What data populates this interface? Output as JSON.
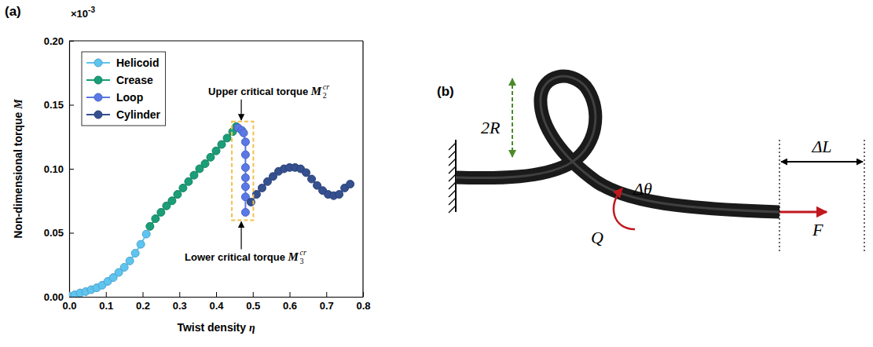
{
  "chart_data": {
    "type": "line",
    "panel_label": "(a)",
    "xlabel": "Twist density η",
    "ylabel": "Non-dimensional torque M",
    "y_multiplier": {
      "text": "×10",
      "exponent": "-3"
    },
    "xlim": [
      0,
      0.8
    ],
    "ylim": [
      0,
      0.2
    ],
    "xticks": [
      {
        "value": 0,
        "label": "0.0"
      },
      0.1,
      0.2,
      0.3,
      0.4,
      0.5,
      0.6,
      0.7,
      0.8
    ],
    "yticks": [
      {
        "value": 0,
        "label": "0.00"
      },
      0.05,
      {
        "value": 0.1,
        "label": "0.10"
      },
      0.15,
      {
        "value": 0.2,
        "label": "0.20"
      }
    ],
    "legend": "upper left",
    "marker": "circle",
    "line_style": "solid",
    "series": [
      {
        "name": "Helicoid",
        "color": "#5ec4f0",
        "x": [
          0,
          0.015,
          0.03,
          0.045,
          0.06,
          0.075,
          0.09,
          0.105,
          0.12,
          0.135,
          0.15,
          0.165,
          0.18,
          0.195,
          0.21
        ],
        "values": [
          0.0005,
          0.0015,
          0.003,
          0.004,
          0.0055,
          0.007,
          0.009,
          0.012,
          0.015,
          0.019,
          0.023,
          0.028,
          0.034,
          0.041,
          0.049
        ]
      },
      {
        "name": "Crease",
        "color": "#1a9e77",
        "x": [
          0.22,
          0.235,
          0.25,
          0.265,
          0.28,
          0.295,
          0.31,
          0.325,
          0.34,
          0.355,
          0.37,
          0.385,
          0.4,
          0.415,
          0.43,
          0.445,
          0.455
        ],
        "values": [
          0.055,
          0.061,
          0.066,
          0.071,
          0.075,
          0.08,
          0.085,
          0.09,
          0.095,
          0.1,
          0.104,
          0.109,
          0.114,
          0.119,
          0.124,
          0.129,
          0.133
        ]
      },
      {
        "name": "Loop",
        "color": "#5a78e6",
        "x": [
          0.46,
          0.47,
          0.475,
          0.48,
          0.48,
          0.48,
          0.48,
          0.48,
          0.48,
          0.48
        ],
        "values": [
          0.132,
          0.13,
          0.128,
          0.121,
          0.111,
          0.101,
          0.093,
          0.086,
          0.078,
          0.066
        ]
      },
      {
        "name": "Cylinder",
        "color": "#34508f",
        "x": [
          0.495,
          0.51,
          0.525,
          0.54,
          0.555,
          0.57,
          0.585,
          0.6,
          0.615,
          0.63,
          0.645,
          0.66,
          0.675,
          0.69,
          0.705,
          0.72,
          0.735,
          0.75,
          0.765
        ],
        "values": [
          0.074,
          0.08,
          0.085,
          0.09,
          0.094,
          0.098,
          0.1,
          0.101,
          0.101,
          0.1,
          0.097,
          0.092,
          0.087,
          0.083,
          0.08,
          0.079,
          0.08,
          0.085,
          0.088
        ]
      }
    ],
    "annotations": [
      {
        "text": "Upper critical torque",
        "symbol": "M",
        "sub": "2",
        "sup": "cr"
      },
      {
        "text": "Lower critical torque",
        "symbol": "M",
        "sub": "3",
        "sup": "cr"
      }
    ]
  },
  "diagram": {
    "panel_label": "(b)",
    "labels": {
      "diameter": "2R",
      "twist_angle": "Δθ",
      "torque": "Q",
      "force": "F",
      "extension": "ΔL"
    }
  }
}
